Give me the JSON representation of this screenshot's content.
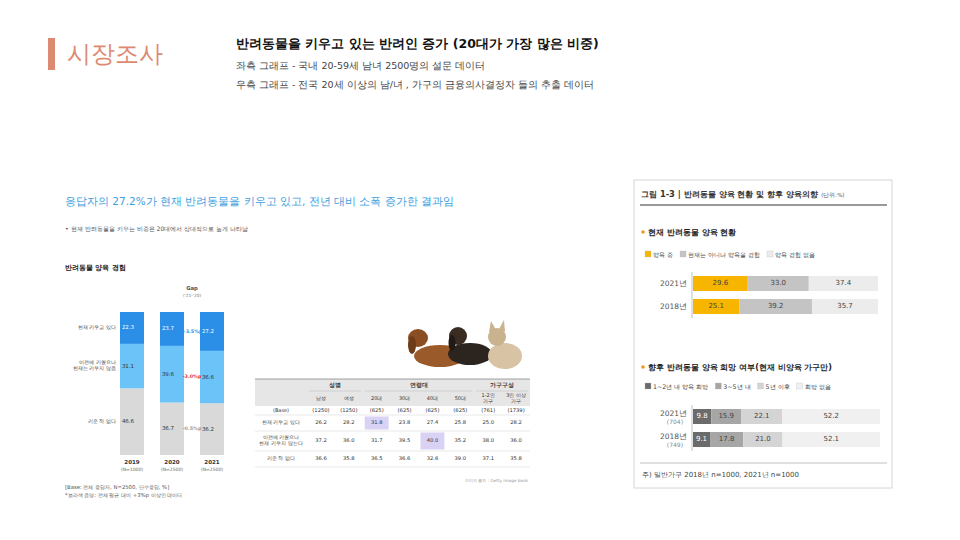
{
  "header": {
    "title": "시장조사",
    "headline": "반려동물을 키우고 있는 반려인 증가 (20대가 가장 많은 비중)",
    "notes": [
      "좌측 그래프 - 국내 20-59세 남녀 2500명의 설문 데이터",
      "우측 그래프 - 전국 20세 이상의 남/녀 , 가구의 금융의사결정자 들의 추출 데이터"
    ]
  },
  "left_panel": {
    "headline": "응답자의 27.2%가 현재 반려동물을 키우고 있고, 전년 대비 소폭 증가한 결과임",
    "bullet": "• 현재 반려동물을 키우는 비중은 20대에서 상대적으로 높게 나타남",
    "notes": [
      "[Base: 전체 응답자, N=2500, 단수응답, %]",
      "*보라색 음영: 전체 평균 대비 +3%p 이상인 데이터"
    ],
    "image_credit": "이미지 출처 : Getty image bank"
  },
  "chart_data": [
    {
      "type": "bar",
      "stacked": true,
      "title": "반려동물 양육 경험",
      "categories": [
        "2019",
        "2020",
        "2021"
      ],
      "category_notes": [
        "(N=1000)",
        "(N=2500)",
        "(N=2500)"
      ],
      "series": [
        {
          "name": "현재 키우고 있다",
          "color": "#2b8fe8",
          "values": [
            22.3,
            23.7,
            27.2
          ]
        },
        {
          "name": "이전에 키웠으나\n현재는 키우지 않음",
          "color": "#6cc3f7",
          "values": [
            31.1,
            39.6,
            36.6
          ]
        },
        {
          "name": "키운 적 없다",
          "color": "#d9d9d9",
          "values": [
            46.6,
            36.7,
            36.2
          ]
        }
      ],
      "ylim": [
        0,
        100
      ],
      "tick_labels": false,
      "data_labels": true,
      "gap": {
        "title": "Gap",
        "subtitle": "('21-'20)",
        "labels": [
          "+3.5%p",
          "-3.0%p",
          "-0.5%p"
        ],
        "colors": [
          "#2b8fe8",
          "#e8313b",
          "#999999"
        ]
      }
    },
    {
      "type": "bar",
      "orientation": "horizontal",
      "stacked": true,
      "title": "현재 반려동물 양육 현황",
      "categories": [
        "2021년",
        "2018년"
      ],
      "series": [
        {
          "name": "양육 중",
          "color": "#f7b500",
          "values": [
            29.6,
            25.1
          ]
        },
        {
          "name": "현재는 아니나 양육을 경험",
          "color": "#c4c4c4",
          "values": [
            33,
            39.2
          ],
          "value_labels": [
            "33.0",
            "39.2"
          ]
        },
        {
          "name": "양육 경험 없음",
          "color": "#ececec",
          "values": [
            37.4,
            35.7
          ]
        }
      ],
      "xlim": [
        0,
        100
      ],
      "tick_labels": "y",
      "data_labels": true,
      "legend": "top"
    },
    {
      "type": "bar",
      "orientation": "horizontal",
      "stacked": true,
      "title": "향후 반려동물 양육 희망 여부(현재 비양육 가구만)",
      "categories": [
        "2021년",
        "2018년"
      ],
      "category_notes": [
        "(704)",
        "(749)"
      ],
      "series": [
        {
          "name": "1~2년 내 양육 희망",
          "color": "#6b6b6b",
          "values": [
            9.8,
            9.1
          ]
        },
        {
          "name": "3~5년 내",
          "color": "#a6a6a6",
          "values": [
            15.9,
            17.8
          ]
        },
        {
          "name": "5년 이후",
          "color": "#d4d4d4",
          "values": [
            22.1,
            21
          ],
          "value_labels": [
            "22.1",
            "21.0"
          ]
        },
        {
          "name": "희망 없음",
          "color": "#f0f0f0",
          "values": [
            52.2,
            52.1
          ]
        }
      ],
      "xlim": [
        0,
        100
      ],
      "tick_labels": "y",
      "data_labels": true,
      "legend": "top"
    }
  ],
  "table": {
    "groups": [
      {
        "label": "성별",
        "span": 2
      },
      {
        "label": "연령대",
        "span": 4
      },
      {
        "label": "가구구성",
        "span": 2
      }
    ],
    "columns": [
      "남성",
      "여성",
      "20대",
      "30대",
      "40대",
      "50대",
      "1-2인\n가구",
      "3인 이상\n가구"
    ],
    "rows": [
      [
        "(Base)",
        "(1250)",
        "(1250)",
        "(625)",
        "(625)",
        "(625)",
        "(625)",
        "(761)",
        "(1739)"
      ],
      [
        "현재 키우고 있다",
        "26.2",
        "28.2",
        "31.8",
        "23.8",
        "27.4",
        "25.8",
        "25.0",
        "28.2"
      ],
      [
        "이전에 키웠으나\n현재 키우지 않는다",
        "37.2",
        "36.0",
        "31.7",
        "39.5",
        "40.0",
        "35.2",
        "38.0",
        "36.0"
      ],
      [
        "키운 적 없다",
        "36.6",
        "35.8",
        "36.5",
        "36.6",
        "32.6",
        "39.0",
        "37.1",
        "35.8"
      ]
    ],
    "highlights": [
      [
        1,
        3
      ],
      [
        2,
        5
      ]
    ]
  },
  "right_panel": {
    "title": "그림 1-3 | 반려동물 양육 현황 및 향후 양육의향",
    "unit": "(단위:%)",
    "footnote": "주) 일반가구 2018년 n=1000, 2021년 n=1000"
  }
}
